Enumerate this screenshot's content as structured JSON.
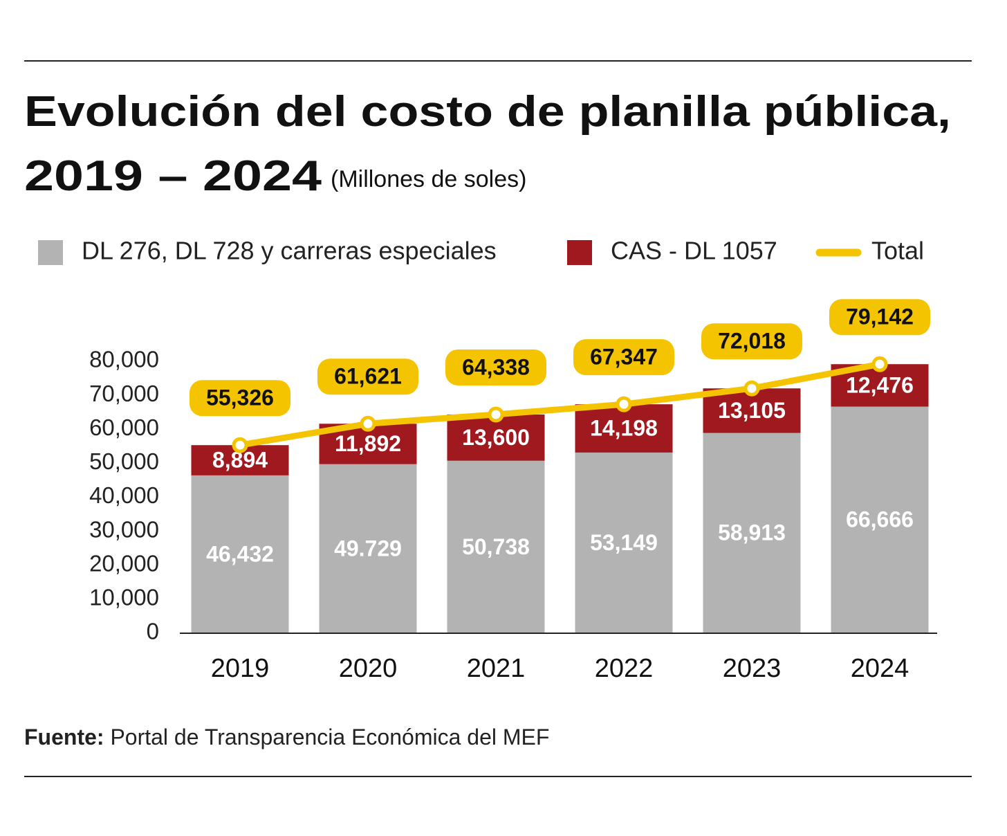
{
  "chart_data": {
    "type": "stacked-bar-line",
    "title": [
      "Evolución del costo de planilla pública,",
      "2019 – 2024"
    ],
    "subtitle": "(Millones de soles)",
    "source_label": "Fuente:",
    "source": "Portal de Transparencia Económica del MEF",
    "categories": [
      "2019",
      "2020",
      "2021",
      "2022",
      "2023",
      "2024"
    ],
    "series": [
      {
        "name": "DL 276, DL 728 y carreras especiales",
        "color": "#b3b3b3",
        "type": "bar",
        "values": [
          46432,
          49729,
          50738,
          53149,
          58913,
          66666
        ],
        "value_labels": [
          "46,432",
          "49.729",
          "50,738",
          "53,149",
          "58,913",
          "66,666"
        ]
      },
      {
        "name": "CAS - DL 1057",
        "color": "#a0191e",
        "type": "bar",
        "values": [
          8894,
          11892,
          13600,
          14198,
          13105,
          12476
        ],
        "value_labels": [
          "8,894",
          "11,892",
          "13,600",
          "14,198",
          "13,105",
          "12,476"
        ]
      },
      {
        "name": "Total",
        "color": "#f5c400",
        "type": "line",
        "values": [
          55326,
          61621,
          64338,
          67347,
          72018,
          79142
        ],
        "value_labels": [
          "55,326",
          "61,621",
          "64,338",
          "67,347",
          "72,018",
          "79,142"
        ]
      }
    ],
    "ylim": [
      0,
      80000
    ],
    "yticks": [
      0,
      {
        "value": 10000,
        "label": "10,000"
      },
      {
        "value": 20000,
        "label": "20,000"
      },
      {
        "value": 30000,
        "label": "30,000"
      },
      {
        "value": 40000,
        "label": "40,000"
      },
      {
        "value": 50000,
        "label": "50,000"
      },
      {
        "value": 60000,
        "label": "60,000"
      },
      {
        "value": 70000,
        "label": "70,000"
      },
      {
        "value": 80000,
        "label": "80,000"
      }
    ],
    "grid": false
  }
}
